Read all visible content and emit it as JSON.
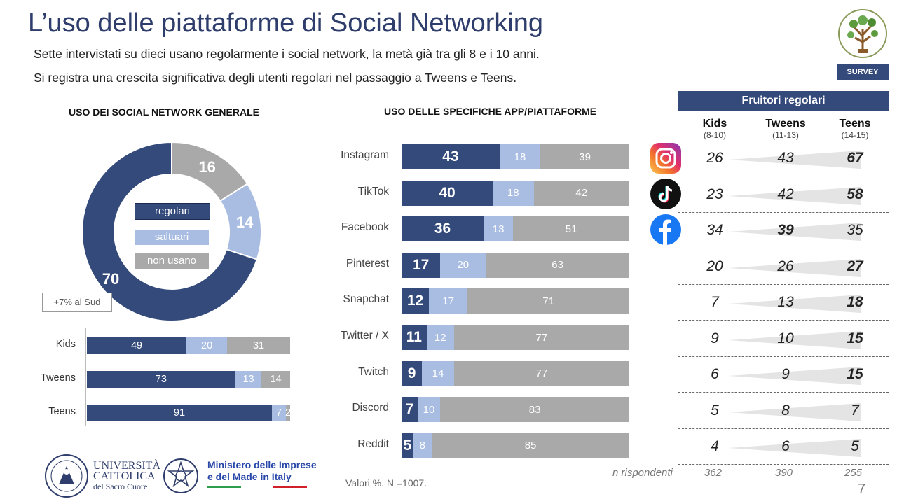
{
  "title": "L’uso delle piattaforme di Social Networking",
  "subtitles": [
    "Sette intervistati su dieci usano regolarmente i social network, la metà già tra gli 8 e i 10 anni.",
    "Si registra una crescita significativa degli utenti regolari nel passaggio a Tweens e Teens."
  ],
  "badge": "SURVEY",
  "page_number": "7",
  "footer_note": "Valori %. N =1007.",
  "logos": {
    "university": [
      "UNIVERSITÀ",
      "CATTOLICA",
      "del Sacro Cuore"
    ],
    "ministry": [
      "Ministero delle Imprese",
      "e del Made in Italy"
    ]
  },
  "colors": {
    "regolari": "#344A7B",
    "saltuari": "#A9BDE3",
    "non_usano": "#A9A9A9",
    "accent": "#2E3D6B"
  },
  "chart_data": [
    {
      "type": "pie",
      "title": "USO DEI SOCIAL NETWORK GENERALE",
      "categories": [
        "regolari",
        "saltuari",
        "non usano"
      ],
      "values": [
        70,
        14,
        16
      ],
      "annotation": "+7% al Sud"
    },
    {
      "type": "bar",
      "stacked": true,
      "orientation": "horizontal",
      "categories": [
        "Kids",
        "Tweens",
        "Teens"
      ],
      "series": [
        {
          "name": "regolari",
          "values": [
            49,
            73,
            91
          ]
        },
        {
          "name": "saltuari",
          "values": [
            20,
            13,
            7
          ]
        },
        {
          "name": "non usano",
          "values": [
            31,
            14,
            2
          ]
        }
      ]
    },
    {
      "type": "bar",
      "stacked": true,
      "orientation": "horizontal",
      "title": "USO DELLE SPECIFICHE APP/PIATTAFORME",
      "categories": [
        "Instagram",
        "TikTok",
        "Facebook",
        "Pinterest",
        "Snapchat",
        "Twitter / X",
        "Twitch",
        "Discord",
        "Reddit"
      ],
      "series": [
        {
          "name": "regolari",
          "values": [
            43,
            40,
            36,
            17,
            12,
            11,
            9,
            7,
            5
          ]
        },
        {
          "name": "saltuari",
          "values": [
            18,
            18,
            13,
            20,
            17,
            12,
            14,
            10,
            8
          ]
        },
        {
          "name": "non usano",
          "values": [
            39,
            42,
            51,
            63,
            71,
            77,
            77,
            83,
            85
          ]
        }
      ]
    },
    {
      "type": "table",
      "title": "Fruitori regolari",
      "columns": [
        {
          "name": "Kids",
          "range": "(8-10)"
        },
        {
          "name": "Tweens",
          "range": "(11-13)"
        },
        {
          "name": "Teens",
          "range": "(14-15)"
        }
      ],
      "rows": [
        {
          "app": "instagram-icon",
          "values": [
            26,
            43,
            67
          ],
          "bold": [
            false,
            false,
            true
          ]
        },
        {
          "app": "tiktok-icon",
          "values": [
            23,
            42,
            58
          ],
          "bold": [
            false,
            false,
            true
          ]
        },
        {
          "app": "facebook-icon",
          "values": [
            34,
            39,
            35
          ],
          "bold": [
            false,
            true,
            false
          ]
        },
        {
          "values": [
            20,
            26,
            27
          ],
          "bold": [
            false,
            false,
            true
          ]
        },
        {
          "values": [
            7,
            13,
            18
          ],
          "bold": [
            false,
            false,
            true
          ]
        },
        {
          "values": [
            9,
            10,
            15
          ],
          "bold": [
            false,
            false,
            true
          ]
        },
        {
          "values": [
            6,
            9,
            15
          ],
          "bold": [
            false,
            false,
            true
          ]
        },
        {
          "values": [
            5,
            8,
            7
          ],
          "bold": [
            false,
            false,
            false
          ]
        },
        {
          "values": [
            4,
            6,
            5
          ],
          "bold": [
            false,
            false,
            false
          ]
        }
      ],
      "n_label": "n rispondenti",
      "n_values": [
        362,
        390,
        255
      ]
    }
  ]
}
